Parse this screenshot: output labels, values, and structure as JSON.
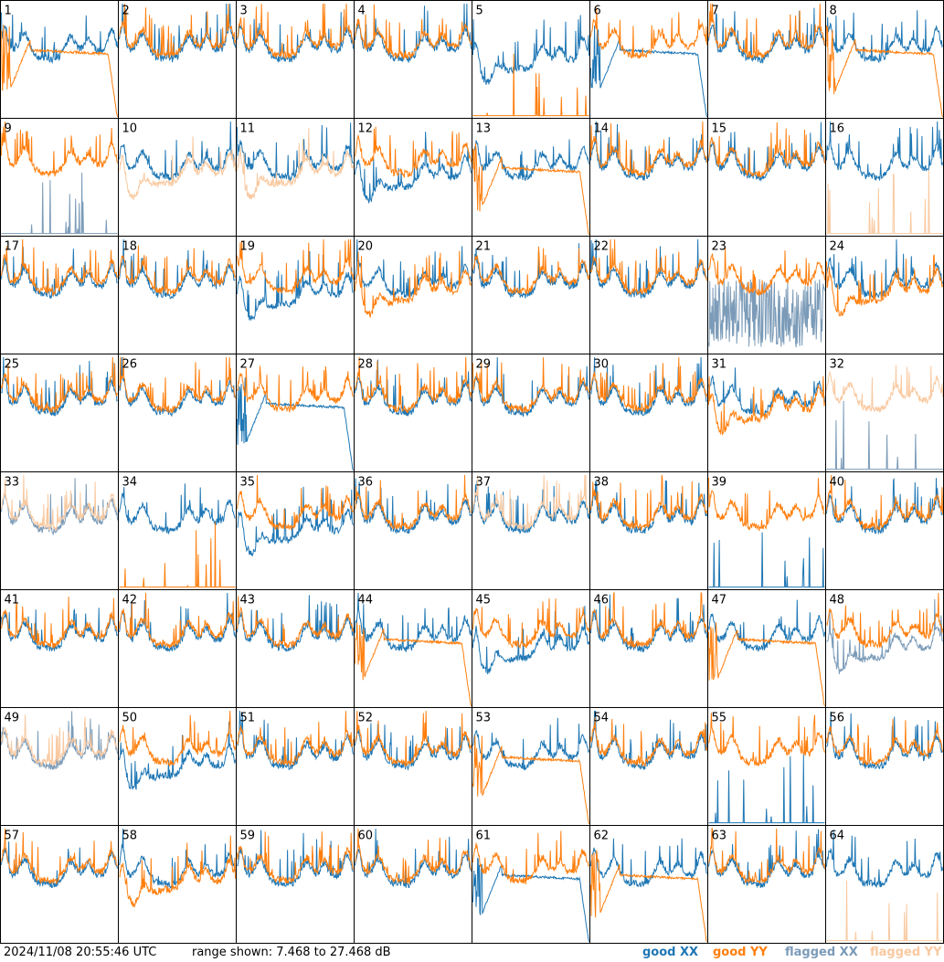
{
  "footer": {
    "timestamp": "2024/11/08 20:55:46 UTC",
    "range": "range shown: 7.468 to 27.468 dB"
  },
  "legend": [
    {
      "label": "good XX",
      "color": "#1f77b4"
    },
    {
      "label": "good YY",
      "color": "#ff7f0e"
    },
    {
      "label": "flagged XX",
      "color": "#7b9bb8"
    },
    {
      "label": "flagged YY",
      "color": "#f9c9a0"
    }
  ],
  "chart_data": {
    "type": "line",
    "grid": {
      "rows": 8,
      "cols": 8
    },
    "y_range_db": [
      7.468,
      27.468
    ],
    "panels": [
      {
        "id": "1",
        "xx": "good",
        "yy": "good",
        "yy_style": "drop"
      },
      {
        "id": "2",
        "xx": "good",
        "yy": "good"
      },
      {
        "id": "3",
        "xx": "good",
        "yy": "good"
      },
      {
        "id": "4",
        "xx": "good",
        "yy": "good"
      },
      {
        "id": "5",
        "xx": "good",
        "yy": "good",
        "xx_style": "dip",
        "yy_style": "floor"
      },
      {
        "id": "6",
        "xx": "good",
        "yy": "good",
        "xx_style": "drop"
      },
      {
        "id": "7",
        "xx": "good",
        "yy": "good"
      },
      {
        "id": "8",
        "xx": "good",
        "yy": "good",
        "yy_style": "drop"
      },
      {
        "id": "9",
        "xx": "flagged",
        "yy": "good",
        "xx_style": "floor"
      },
      {
        "id": "10",
        "xx": "good",
        "yy": "flagged",
        "yy_style": "dip"
      },
      {
        "id": "11",
        "xx": "good",
        "yy": "flagged",
        "yy_style": "dip"
      },
      {
        "id": "12",
        "xx": "good",
        "yy": "good",
        "xx_style": "dip"
      },
      {
        "id": "13",
        "xx": "good",
        "yy": "good",
        "yy_style": "drop"
      },
      {
        "id": "14",
        "xx": "good",
        "yy": "good"
      },
      {
        "id": "15",
        "xx": "good",
        "yy": "good"
      },
      {
        "id": "16",
        "xx": "good",
        "yy": "flagged",
        "yy_style": "floor"
      },
      {
        "id": "17",
        "xx": "good",
        "yy": "good"
      },
      {
        "id": "18",
        "xx": "good",
        "yy": "good"
      },
      {
        "id": "19",
        "xx": "good",
        "yy": "good",
        "xx_style": "dip"
      },
      {
        "id": "20",
        "xx": "good",
        "yy": "good",
        "yy_style": "dip"
      },
      {
        "id": "21",
        "xx": "good",
        "yy": "good"
      },
      {
        "id": "22",
        "xx": "good",
        "yy": "good"
      },
      {
        "id": "23",
        "xx": "flagged",
        "yy": "good",
        "xx_style": "noise"
      },
      {
        "id": "24",
        "xx": "good",
        "yy": "good",
        "yy_style": "dip"
      },
      {
        "id": "25",
        "xx": "good",
        "yy": "good"
      },
      {
        "id": "26",
        "xx": "good",
        "yy": "good"
      },
      {
        "id": "27",
        "xx": "good",
        "yy": "good",
        "xx_style": "drop"
      },
      {
        "id": "28",
        "xx": "good",
        "yy": "good"
      },
      {
        "id": "29",
        "xx": "good",
        "yy": "good"
      },
      {
        "id": "30",
        "xx": "good",
        "yy": "good"
      },
      {
        "id": "31",
        "xx": "good",
        "yy": "good",
        "yy_style": "dip"
      },
      {
        "id": "32",
        "xx": "flagged",
        "yy": "flagged",
        "xx_style": "floor"
      },
      {
        "id": "33",
        "xx": "flagged",
        "yy": "flagged"
      },
      {
        "id": "34",
        "xx": "good",
        "yy": "good",
        "yy_style": "floor"
      },
      {
        "id": "35",
        "xx": "good",
        "yy": "good",
        "xx_style": "dip"
      },
      {
        "id": "36",
        "xx": "good",
        "yy": "good"
      },
      {
        "id": "37",
        "xx": "good",
        "yy": "flagged"
      },
      {
        "id": "38",
        "xx": "good",
        "yy": "good"
      },
      {
        "id": "39",
        "xx": "good",
        "yy": "good",
        "xx_style": "floor"
      },
      {
        "id": "40",
        "xx": "good",
        "yy": "good"
      },
      {
        "id": "41",
        "xx": "good",
        "yy": "good"
      },
      {
        "id": "42",
        "xx": "good",
        "yy": "good"
      },
      {
        "id": "43",
        "xx": "good",
        "yy": "good"
      },
      {
        "id": "44",
        "xx": "good",
        "yy": "good",
        "yy_style": "drop"
      },
      {
        "id": "45",
        "xx": "good",
        "yy": "good",
        "xx_style": "dip"
      },
      {
        "id": "46",
        "xx": "good",
        "yy": "good"
      },
      {
        "id": "47",
        "xx": "good",
        "yy": "good",
        "yy_style": "drop"
      },
      {
        "id": "48",
        "xx": "flagged",
        "yy": "good",
        "xx_style": "dip"
      },
      {
        "id": "49",
        "xx": "flagged",
        "yy": "flagged"
      },
      {
        "id": "50",
        "xx": "good",
        "yy": "good",
        "xx_style": "dip"
      },
      {
        "id": "51",
        "xx": "good",
        "yy": "good"
      },
      {
        "id": "52",
        "xx": "good",
        "yy": "good"
      },
      {
        "id": "53",
        "xx": "good",
        "yy": "good",
        "yy_style": "drop"
      },
      {
        "id": "54",
        "xx": "good",
        "yy": "good"
      },
      {
        "id": "55",
        "xx": "good",
        "yy": "good",
        "xx_style": "floor"
      },
      {
        "id": "56",
        "xx": "good",
        "yy": "good"
      },
      {
        "id": "57",
        "xx": "good",
        "yy": "good"
      },
      {
        "id": "58",
        "xx": "good",
        "yy": "good",
        "yy_style": "dip"
      },
      {
        "id": "59",
        "xx": "good",
        "yy": "good"
      },
      {
        "id": "60",
        "xx": "good",
        "yy": "good"
      },
      {
        "id": "61",
        "xx": "good",
        "yy": "good",
        "xx_style": "drop"
      },
      {
        "id": "62",
        "xx": "good",
        "yy": "good",
        "yy_style": "drop"
      },
      {
        "id": "63",
        "xx": "good",
        "yy": "good"
      },
      {
        "id": "64",
        "xx": "good",
        "yy": "flagged",
        "yy_style": "floor"
      }
    ]
  }
}
